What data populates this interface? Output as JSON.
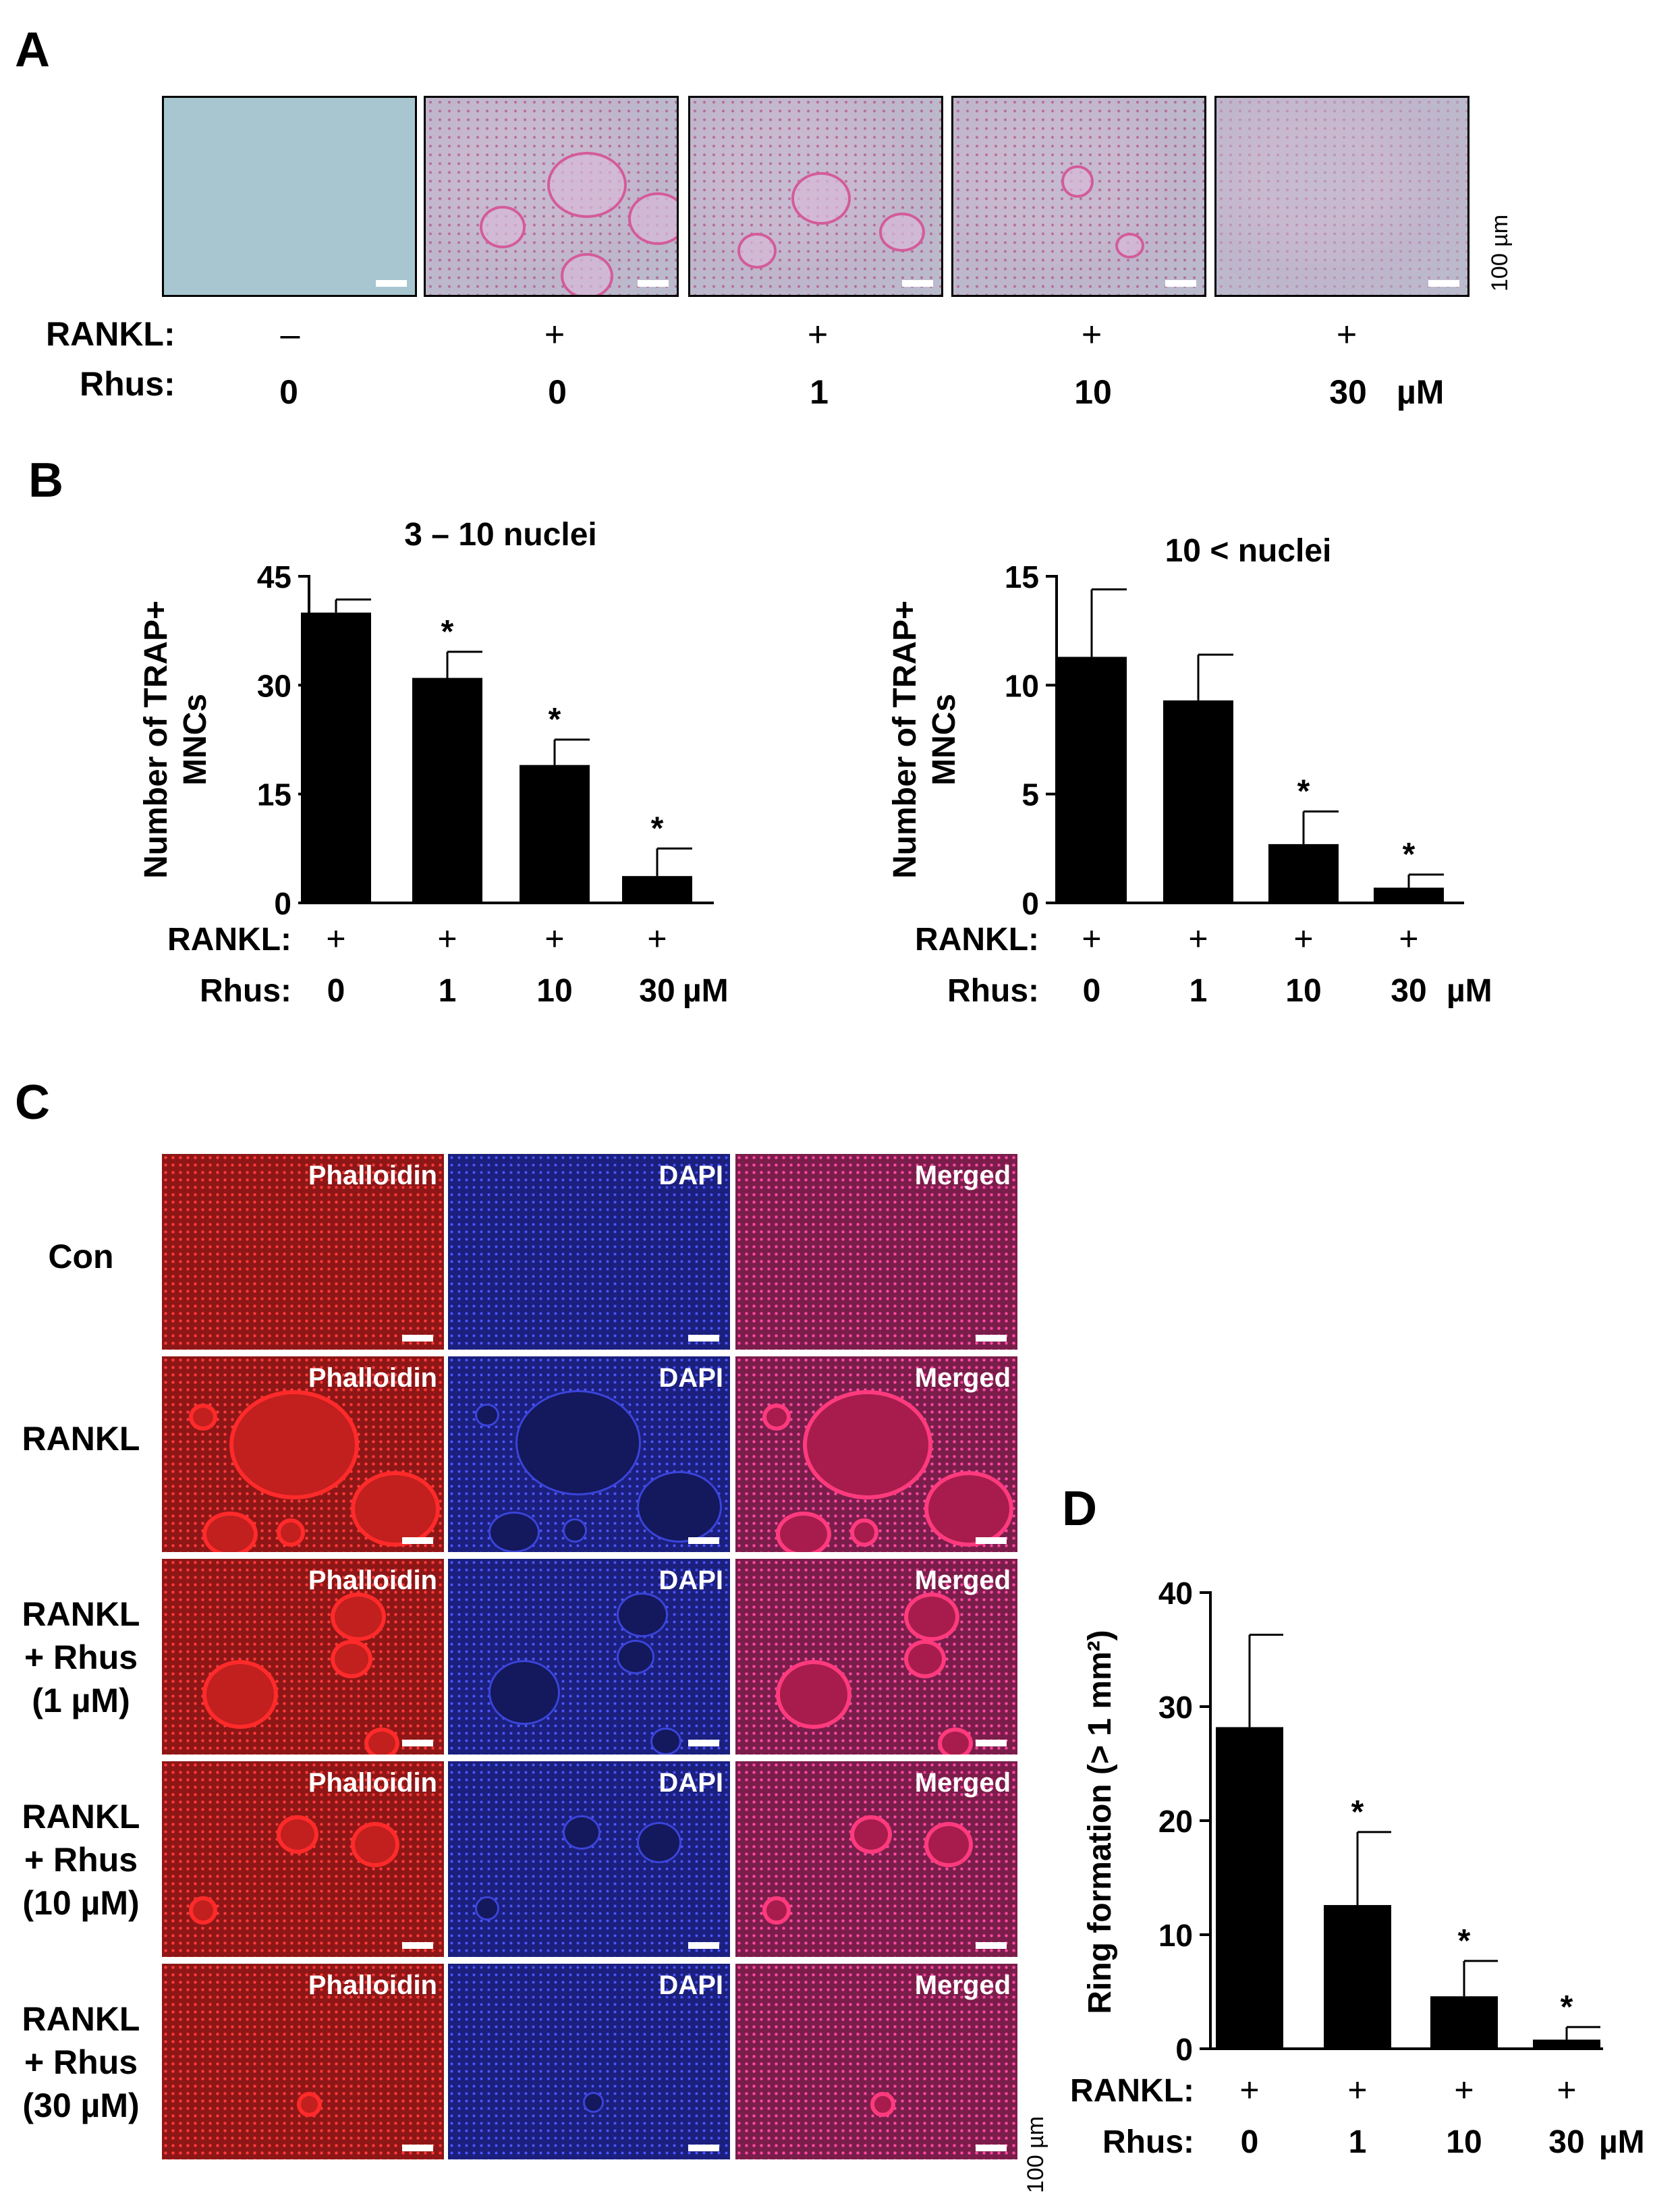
{
  "panels": {
    "a": "A",
    "b": "B",
    "c": "C",
    "d": "D"
  },
  "scale_bar_label": "100 µm",
  "common": {
    "rankl_label": "RANKL:",
    "rhus_label": "Rhus:",
    "plus": "+",
    "minus": "–",
    "unit": "µM",
    "asterisk": "*"
  },
  "panel_a": {
    "rankl": [
      "–",
      "+",
      "+",
      "+",
      "+"
    ],
    "rhus": [
      "0",
      "0",
      "1",
      "10",
      "30"
    ]
  },
  "panel_c": {
    "channels": [
      "Phalloidin",
      "DAPI",
      "Merged"
    ],
    "rows": [
      [
        "Con"
      ],
      [
        "RANKL"
      ],
      [
        "RANKL",
        "+ Rhus",
        "(1 µM)"
      ],
      [
        "RANKL",
        "+ Rhus",
        "(10 µM)"
      ],
      [
        "RANKL",
        "+ Rhus",
        "(30 µM)"
      ]
    ]
  },
  "chart_data": [
    {
      "type": "bar",
      "title": "3 – 10 nuclei",
      "ylabel": "Number of TRAP+ MNCs",
      "ylabel_lines": [
        "Number of TRAP+",
        "MNCs"
      ],
      "ylim": [
        0,
        45
      ],
      "yticks": [
        0,
        15,
        30,
        45
      ],
      "categories": [
        "0",
        "1",
        "10",
        "30"
      ],
      "values": [
        40,
        31,
        19,
        3.7
      ],
      "errors": [
        1.8,
        3.6,
        3.5,
        3.8
      ],
      "significant": [
        false,
        true,
        true,
        true
      ],
      "rankl": [
        "+",
        "+",
        "+",
        "+"
      ]
    },
    {
      "type": "bar",
      "title": "10 < nuclei",
      "ylabel": "Number of TRAP+ MNCs",
      "ylabel_lines": [
        "Number of TRAP+",
        "MNCs"
      ],
      "ylim": [
        0,
        15
      ],
      "yticks": [
        0,
        5,
        10,
        15
      ],
      "categories": [
        "0",
        "1",
        "10",
        "30"
      ],
      "values": [
        11.3,
        9.3,
        2.7,
        0.7
      ],
      "errors": [
        3.1,
        2.1,
        1.5,
        0.6
      ],
      "significant": [
        false,
        false,
        true,
        true
      ],
      "rankl": [
        "+",
        "+",
        "+",
        "+"
      ]
    },
    {
      "type": "bar",
      "title": "",
      "ylabel": "Ring formation (> 1 mm²)",
      "ylim": [
        0,
        40
      ],
      "yticks": [
        0,
        10,
        20,
        30,
        40
      ],
      "categories": [
        "0",
        "1",
        "10",
        "30"
      ],
      "values": [
        28.2,
        12.6,
        4.6,
        0.8
      ],
      "errors": [
        8.1,
        6.4,
        3.1,
        1.1
      ],
      "significant": [
        false,
        true,
        true,
        true
      ],
      "rankl": [
        "+",
        "+",
        "+",
        "+"
      ]
    }
  ]
}
